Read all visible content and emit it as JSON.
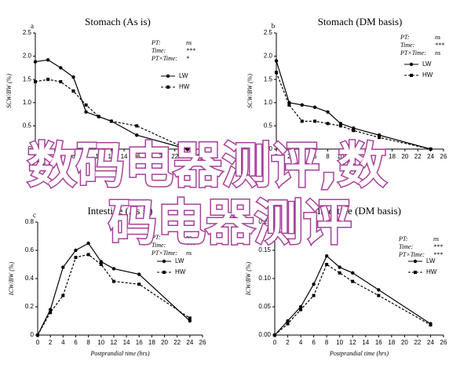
{
  "chart_data": [
    {
      "type": "line",
      "panel": "a",
      "title": "Stomach (As is)",
      "ylabel": "SCW/BW (%)",
      "x": [
        0,
        2,
        4,
        6,
        8,
        10,
        12,
        16,
        24
      ],
      "xlim": [
        0,
        26
      ],
      "xticks": [
        0,
        2,
        4,
        6,
        8,
        10,
        12,
        14,
        16,
        18,
        20,
        22,
        24,
        26
      ],
      "ylim": [
        0,
        2.5
      ],
      "yticks": [
        0,
        0.5,
        {
          "value": 1,
          "label": "1.0"
        },
        1.5,
        {
          "value": 2,
          "label": "2.0"
        },
        2.5
      ],
      "stats": [
        {
          "label": "PT:",
          "value": "ns"
        },
        {
          "label": "Time:",
          "value": "***"
        },
        {
          "label": "PT×Time:",
          "value": "*"
        }
      ],
      "series": [
        {
          "name": "LW",
          "color": "#000000",
          "line_style": "solid",
          "marker": "circle",
          "values": [
            1.88,
            1.92,
            1.75,
            1.55,
            0.8,
            0.7,
            0.6,
            0.3,
            0
          ]
        },
        {
          "name": "HW",
          "color": "#000000",
          "line_style": "dashed",
          "marker": "square",
          "values": [
            1.45,
            1.5,
            1.45,
            1.25,
            0.95,
            0.7,
            0.6,
            0.5,
            0
          ]
        }
      ]
    },
    {
      "type": "line",
      "panel": "b",
      "title": "Stomach (DM basis)",
      "ylabel": "SCW/BW (%)",
      "x": [
        0,
        2,
        4,
        6,
        8,
        10,
        12,
        16,
        24
      ],
      "xlim": [
        0,
        26
      ],
      "xticks": [
        0,
        2,
        4,
        6,
        8,
        10,
        12,
        14,
        16,
        18,
        20,
        22,
        24,
        26
      ],
      "ylim": [
        0,
        2.5
      ],
      "yticks": [
        0,
        0.5,
        {
          "value": 1,
          "label": "1.0"
        },
        1.5,
        {
          "value": 2,
          "label": "2.0"
        },
        2.5
      ],
      "stats": [
        {
          "label": "PT:",
          "value": "ns"
        },
        {
          "label": "Time:",
          "value": "***"
        },
        {
          "label": "PT×Time:",
          "value": "ns"
        }
      ],
      "series": [
        {
          "name": "LW",
          "color": "#000000",
          "line_style": "solid",
          "marker": "circle",
          "values": [
            1.9,
            1.0,
            0.95,
            0.9,
            0.8,
            0.55,
            0.45,
            0.3,
            0
          ]
        },
        {
          "name": "HW",
          "color": "#000000",
          "line_style": "dashed",
          "marker": "square",
          "values": [
            1.65,
            0.95,
            0.6,
            0.6,
            0.55,
            0.5,
            0.4,
            0.25,
            0
          ]
        }
      ]
    },
    {
      "type": "line",
      "panel": "c",
      "title": "Intestine (As is)",
      "ylabel": "ICW/BW (%)",
      "xlabel": "Postprandial time (hrs)",
      "x": [
        0,
        2,
        4,
        6,
        8,
        10,
        12,
        16,
        24
      ],
      "xlim": [
        0,
        26
      ],
      "xticks": [
        0,
        2,
        4,
        6,
        8,
        10,
        12,
        14,
        16,
        18,
        20,
        22,
        24,
        26
      ],
      "ylim": [
        0,
        0.8
      ],
      "yticks": [
        0,
        0.2,
        0.4,
        0.6,
        0.8
      ],
      "stats": [
        {
          "label": "PT:",
          "value": "ns"
        },
        {
          "label": "Time:",
          "value": "***"
        },
        {
          "label": "PT×Time:",
          "value": "ns"
        }
      ],
      "series": [
        {
          "name": "LW",
          "color": "#000000",
          "line_style": "solid",
          "marker": "circle",
          "values": [
            0,
            0.18,
            0.48,
            0.6,
            0.65,
            0.52,
            0.47,
            0.43,
            0.1
          ]
        },
        {
          "name": "HW",
          "color": "#000000",
          "line_style": "dashed",
          "marker": "square",
          "values": [
            0,
            0.16,
            0.28,
            0.55,
            0.57,
            0.5,
            0.38,
            0.36,
            0.12
          ]
        }
      ]
    },
    {
      "type": "line",
      "panel": "d",
      "title": "Intestine (DM basis)",
      "ylabel": "ICW/BW (%)",
      "xlabel": "Postprandial time (hrs)",
      "x": [
        0,
        2,
        4,
        6,
        8,
        10,
        12,
        16,
        24
      ],
      "xlim": [
        0,
        26
      ],
      "xticks": [
        0,
        2,
        4,
        6,
        8,
        10,
        12,
        14,
        16,
        18,
        20,
        22,
        24,
        26
      ],
      "ylim": [
        0,
        0.2
      ],
      "yticks": [
        {
          "value": 0,
          "label": "0.00"
        },
        0.05,
        {
          "value": 0.1,
          "label": "0.10"
        },
        0.15,
        {
          "value": 0.2,
          "label": "0.20"
        }
      ],
      "stats": [
        {
          "label": "PT:",
          "value": "ns"
        },
        {
          "label": "Time:",
          "value": "***"
        },
        {
          "label": "PT×Time:",
          "value": "***"
        }
      ],
      "series": [
        {
          "name": "LW",
          "color": "#000000",
          "line_style": "solid",
          "marker": "circle",
          "values": [
            0,
            0.025,
            0.05,
            0.09,
            0.14,
            0.12,
            0.11,
            0.08,
            0.02
          ]
        },
        {
          "name": "HW",
          "color": "#000000",
          "line_style": "dashed",
          "marker": "square",
          "values": [
            0,
            0.02,
            0.045,
            0.07,
            0.125,
            0.11,
            0.095,
            0.07,
            0.018
          ]
        }
      ]
    }
  ],
  "watermark": [
    "数码电器测评,数",
    "码电器测评"
  ]
}
